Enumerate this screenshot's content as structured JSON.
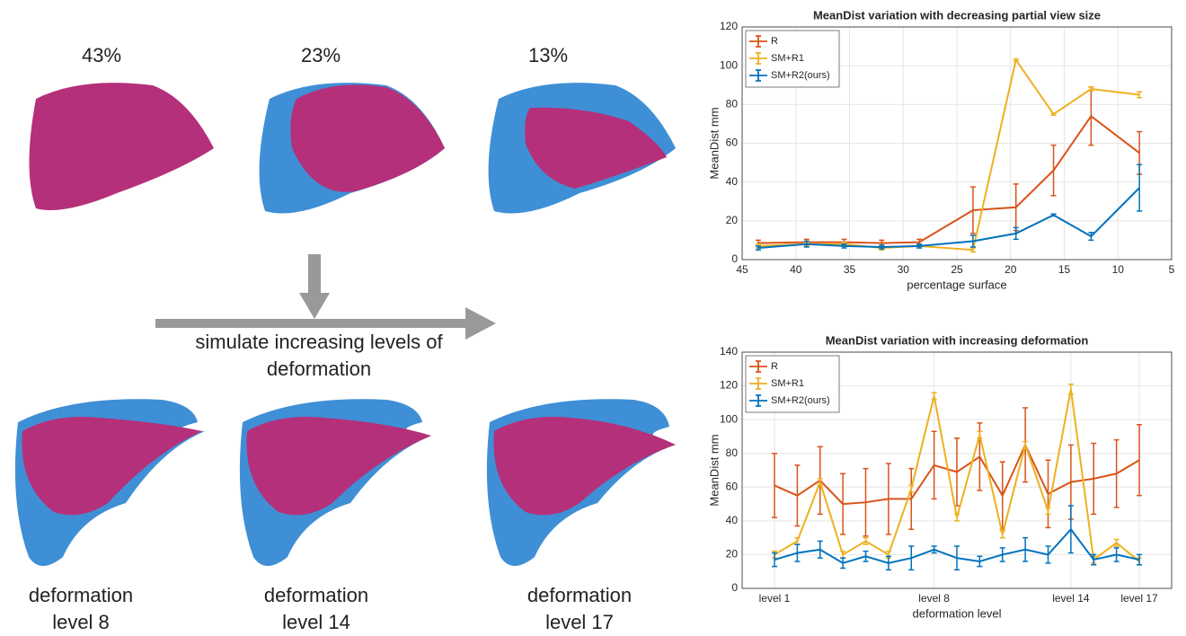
{
  "figure": {
    "view_labels": [
      "43%",
      "23%",
      "13%"
    ],
    "arrow_label": "simulate increasing levels of deformation",
    "deformation_labels": [
      "deformation level 8",
      "deformation level 14",
      "deformation level 17"
    ]
  },
  "chart_data": [
    {
      "type": "line",
      "title": "MeanDist variation with decreasing partial view size",
      "x_label": "percentage surface",
      "y_label": "MeanDist mm",
      "x": [
        43.5,
        39,
        35.5,
        32,
        28.5,
        23.5,
        19.5,
        16,
        12.5,
        8
      ],
      "series": [
        {
          "name": "R",
          "color": "#d95319",
          "values": [
            8.5,
            9,
            9,
            8.5,
            9,
            25.5,
            27,
            46,
            74,
            55
          ],
          "errors": [
            1.5,
            1.5,
            1.5,
            1.5,
            1.5,
            12,
            12,
            13,
            15,
            11
          ]
        },
        {
          "name": "SM+R1",
          "color": "#edb120",
          "values": [
            7,
            8,
            8,
            6,
            7,
            5,
            103,
            75,
            88,
            85
          ],
          "errors": [
            1,
            1,
            1,
            1,
            1,
            1,
            0.5,
            0.5,
            1,
            1.5
          ]
        },
        {
          "name": "SM+R2(ours)",
          "color": "#0072bd",
          "values": [
            6,
            8,
            7,
            6.5,
            7,
            9.5,
            13.5,
            23,
            12,
            37
          ],
          "errors": [
            1,
            1.5,
            1,
            1,
            1,
            3,
            3,
            0.5,
            2,
            12
          ]
        }
      ],
      "xlim": [
        45,
        5
      ],
      "xticks": [
        45,
        40,
        35,
        30,
        25,
        20,
        15,
        10,
        5
      ],
      "ylim": [
        0,
        120
      ],
      "yticks": [
        0,
        20,
        40,
        60,
        80,
        100,
        120
      ],
      "grid": true,
      "legend": "upper-left"
    },
    {
      "type": "line",
      "title": "MeanDist variation with increasing deformation",
      "x_label": "deformation level",
      "y_label": "MeanDist mm",
      "categories": [
        "level 1",
        null,
        null,
        null,
        null,
        null,
        null,
        "level 8",
        null,
        null,
        null,
        null,
        null,
        "level 14",
        null,
        null,
        "level 17"
      ],
      "series": [
        {
          "name": "R",
          "color": "#d95319",
          "values": [
            61,
            55,
            64,
            50,
            51,
            53,
            53,
            73,
            69,
            78,
            55,
            85,
            56,
            63,
            65,
            68,
            76
          ],
          "errors": [
            19,
            18,
            20,
            18,
            20,
            21,
            18,
            20,
            20,
            20,
            20,
            22,
            20,
            22,
            21,
            20,
            21
          ]
        },
        {
          "name": "SM+R1",
          "color": "#edb120",
          "values": [
            20,
            28,
            63,
            20,
            28,
            20,
            59,
            114,
            42,
            91,
            32,
            85,
            46,
            118,
            17,
            27,
            16
          ],
          "errors": [
            2,
            2,
            2,
            2,
            2,
            2,
            2,
            2,
            2,
            2,
            2,
            2,
            2,
            3,
            2,
            2,
            2
          ]
        },
        {
          "name": "SM+R2(ours)",
          "color": "#0072bd",
          "values": [
            17,
            21,
            23,
            15,
            19,
            15,
            18,
            23,
            18,
            16,
            20,
            23,
            20,
            35,
            17,
            20,
            17
          ],
          "errors": [
            4,
            5,
            5,
            3,
            3,
            4,
            7,
            2,
            7,
            3,
            4,
            7,
            5,
            14,
            3,
            4,
            3
          ]
        }
      ],
      "ylim": [
        0,
        140
      ],
      "yticks": [
        0,
        20,
        40,
        60,
        80,
        100,
        120,
        140
      ],
      "grid": true,
      "legend": "upper-left"
    }
  ]
}
